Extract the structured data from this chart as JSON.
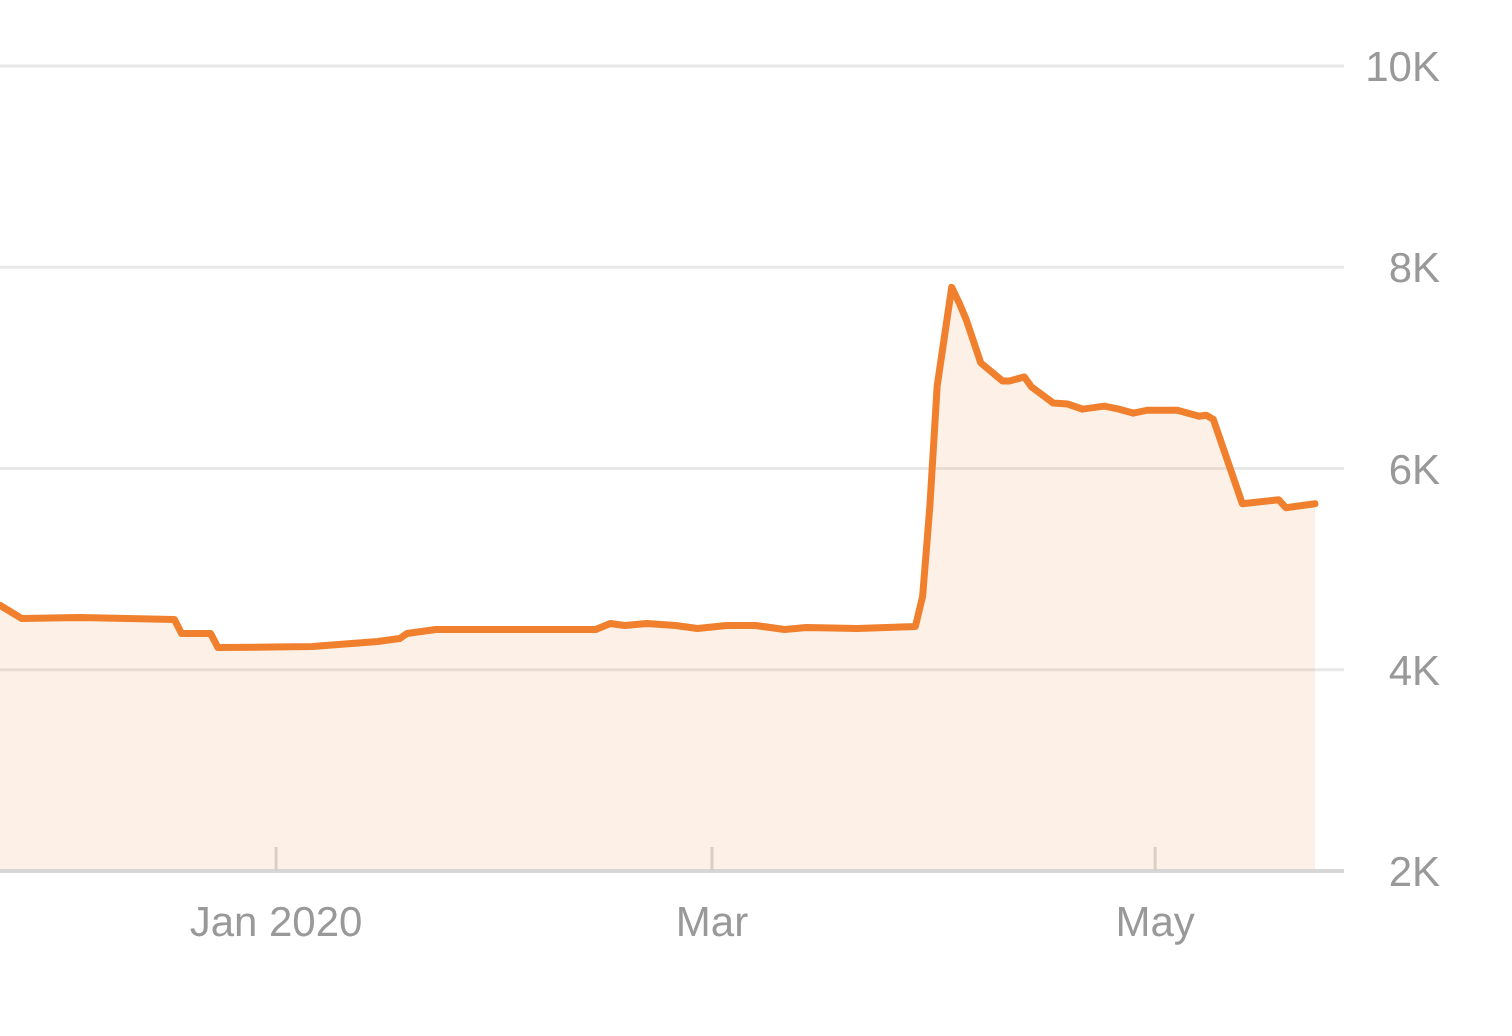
{
  "chart_data": {
    "type": "area",
    "color": "#f0802e",
    "x": [
      "2019-11-24",
      "2019-11-27",
      "2019-12-05",
      "2019-12-18",
      "2019-12-19",
      "2019-12-23",
      "2019-12-24",
      "2020-01-06",
      "2020-01-15",
      "2020-01-18",
      "2020-01-19",
      "2020-01-23",
      "2020-02-03",
      "2020-02-14",
      "2020-02-16",
      "2020-02-18",
      "2020-02-21",
      "2020-02-25",
      "2020-02-28",
      "2020-03-03",
      "2020-03-07",
      "2020-03-11",
      "2020-03-14",
      "2020-03-21",
      "2020-03-29",
      "2020-03-30",
      "2020-03-31",
      "2020-04-01",
      "2020-04-03",
      "2020-04-04",
      "2020-04-05",
      "2020-04-07",
      "2020-04-10",
      "2020-04-11",
      "2020-04-13",
      "2020-04-14",
      "2020-04-17",
      "2020-04-19",
      "2020-04-21",
      "2020-04-24",
      "2020-04-26",
      "2020-04-28",
      "2020-04-30",
      "2020-05-04",
      "2020-05-07",
      "2020-05-08",
      "2020-05-09",
      "2020-05-13",
      "2020-05-18",
      "2020-05-19",
      "2020-05-23"
    ],
    "values": [
      4640,
      4510,
      4520,
      4500,
      4360,
      4360,
      4220,
      4230,
      4280,
      4310,
      4360,
      4400,
      4400,
      4400,
      4460,
      4440,
      4460,
      4440,
      4410,
      4440,
      4440,
      4400,
      4420,
      4410,
      4430,
      4730,
      5630,
      6820,
      7800,
      7650,
      7480,
      7050,
      6870,
      6870,
      6910,
      6810,
      6650,
      6640,
      6590,
      6620,
      6590,
      6550,
      6580,
      6580,
      6520,
      6530,
      6490,
      5650,
      5690,
      5610,
      5650
    ],
    "xlim": [
      "2019-11-24",
      "2020-05-27"
    ],
    "xticks": [
      {
        "value": "2020-01-01",
        "label": "Jan 2020"
      },
      {
        "value": "2020-03-01",
        "label": "Mar"
      },
      {
        "value": "2020-05-01",
        "label": "May"
      }
    ],
    "ylim": [
      2000,
      10000
    ],
    "yticks": [
      {
        "value": 2000,
        "label": "2K"
      },
      {
        "value": 4000,
        "label": "4K"
      },
      {
        "value": 6000,
        "label": "6K"
      },
      {
        "value": 8000,
        "label": "8K"
      },
      {
        "value": 10000,
        "label": "10K"
      }
    ],
    "grid": "y"
  }
}
